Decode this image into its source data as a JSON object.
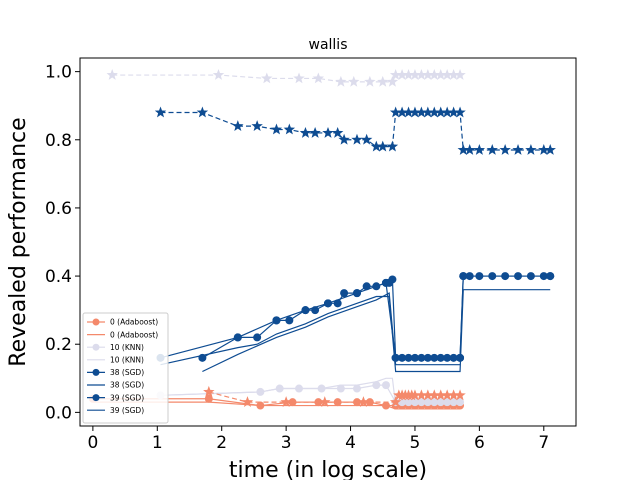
{
  "chart_data": {
    "type": "line",
    "title": "wallis",
    "xlabel": "time (in log scale)",
    "ylabel": "Revealed performance",
    "xlim": [
      -0.2,
      7.5
    ],
    "ylim": [
      -0.04,
      1.04
    ],
    "x_ticks": [
      0,
      1,
      2,
      3,
      4,
      5,
      6,
      7
    ],
    "y_ticks": [
      0.0,
      0.2,
      0.4,
      0.6,
      0.8,
      1.0
    ],
    "x_tick_labels": [
      "0",
      "1",
      "2",
      "3",
      "4",
      "5",
      "6",
      "7"
    ],
    "y_tick_labels": [
      "0.0",
      "0.2",
      "0.4",
      "0.6",
      "0.8",
      "1.0"
    ],
    "grid": false,
    "legend_position": "lower-left",
    "legend": [
      "0 (Adaboost)",
      "0 (Adaboost)",
      "10 (KNN)",
      "10 (KNN)",
      "38 (SGD)",
      "38 (SGD)",
      "39 (SGD)",
      "39 (SGD)"
    ],
    "colors": {
      "adaboost": "#f4896b",
      "knn": "#dcdcec",
      "sgd": "#0e4c92"
    },
    "series": [
      {
        "name": "0 (Adaboost)",
        "role": "test_stars",
        "color": "#f4896b",
        "x": [
          1.8,
          2.4,
          3.0,
          3.6,
          4.2,
          4.7,
          4.75,
          4.8,
          4.85,
          4.9,
          4.95,
          5.0,
          5.1,
          5.2,
          5.3,
          5.4,
          5.5,
          5.6,
          5.7
        ],
        "y": [
          0.06,
          0.03,
          0.03,
          0.03,
          0.03,
          0.03,
          0.05,
          0.05,
          0.05,
          0.05,
          0.05,
          0.05,
          0.05,
          0.05,
          0.05,
          0.05,
          0.05,
          0.05,
          0.05
        ]
      },
      {
        "name": "0 (Adaboost)",
        "role": "markers",
        "color": "#f4896b",
        "x": [
          0.0,
          1.8,
          2.6,
          3.1,
          3.5,
          3.8,
          4.1,
          4.3,
          4.55,
          4.7,
          4.8,
          4.9,
          5.0,
          5.1,
          5.2,
          5.3,
          5.4,
          5.5,
          5.6,
          5.7
        ],
        "y": [
          0.04,
          0.04,
          0.02,
          0.03,
          0.03,
          0.03,
          0.03,
          0.03,
          0.02,
          0.02,
          0.02,
          0.02,
          0.02,
          0.02,
          0.02,
          0.02,
          0.02,
          0.02,
          0.02,
          0.02
        ]
      },
      {
        "name": "0 (Adaboost)",
        "role": "line",
        "color": "#f4896b",
        "x": [
          0.0,
          1.8,
          2.6,
          3.1,
          3.5,
          3.8,
          4.1,
          4.3,
          4.55,
          4.7,
          5.7
        ],
        "y": [
          0.03,
          0.03,
          0.02,
          0.02,
          0.02,
          0.02,
          0.02,
          0.02,
          0.02,
          0.01,
          0.01
        ]
      },
      {
        "name": "10 (KNN)",
        "role": "test_stars",
        "color": "#dcdcec",
        "x": [
          0.3,
          1.95,
          2.7,
          3.2,
          3.5,
          3.85,
          4.05,
          4.3,
          4.5,
          4.65,
          4.7,
          4.8,
          4.9,
          5.0,
          5.1,
          5.2,
          5.3,
          5.4,
          5.5,
          5.6,
          5.7
        ],
        "y": [
          0.99,
          0.99,
          0.98,
          0.98,
          0.98,
          0.97,
          0.97,
          0.97,
          0.97,
          0.97,
          0.99,
          0.99,
          0.99,
          0.99,
          0.99,
          0.99,
          0.99,
          0.99,
          0.99,
          0.99,
          0.99
        ]
      },
      {
        "name": "10 (KNN)",
        "role": "markers",
        "color": "#dcdcec",
        "x": [
          1.05,
          2.6,
          2.9,
          3.2,
          3.55,
          3.85,
          4.1,
          4.4,
          4.55,
          4.7,
          4.8,
          4.9,
          5.0,
          5.1,
          5.2,
          5.3,
          5.4,
          5.5,
          5.6,
          5.7
        ],
        "y": [
          0.05,
          0.06,
          0.07,
          0.07,
          0.07,
          0.07,
          0.07,
          0.08,
          0.08,
          0.03,
          0.03,
          0.03,
          0.03,
          0.03,
          0.03,
          0.03,
          0.03,
          0.03,
          0.03,
          0.03
        ]
      },
      {
        "name": "10 (KNN)",
        "role": "line",
        "color": "#dcdcec",
        "x": [
          1.05,
          2.6,
          2.9,
          3.2,
          3.55,
          3.85,
          4.1,
          4.4,
          4.55,
          4.65,
          4.7,
          5.7
        ],
        "y": [
          0.05,
          0.06,
          0.07,
          0.07,
          0.07,
          0.08,
          0.08,
          0.09,
          0.1,
          0.1,
          0.02,
          0.02
        ]
      },
      {
        "name": "38 (SGD)",
        "role": "test_stars",
        "color": "#0e4c92",
        "x": [
          1.05,
          1.7,
          2.25,
          2.55,
          2.85,
          3.05,
          3.3,
          3.45,
          3.65,
          3.8,
          3.9,
          4.1,
          4.25,
          4.4,
          4.5,
          4.65,
          4.7,
          4.8,
          4.9,
          5.0,
          5.1,
          5.2,
          5.3,
          5.4,
          5.5,
          5.6,
          5.7,
          5.75,
          5.85,
          6.0,
          6.2,
          6.4,
          6.6,
          6.8,
          7.0,
          7.1
        ],
        "y": [
          0.88,
          0.88,
          0.84,
          0.84,
          0.83,
          0.83,
          0.82,
          0.82,
          0.82,
          0.82,
          0.8,
          0.8,
          0.8,
          0.78,
          0.78,
          0.78,
          0.88,
          0.88,
          0.88,
          0.88,
          0.88,
          0.88,
          0.88,
          0.88,
          0.88,
          0.88,
          0.88,
          0.77,
          0.77,
          0.77,
          0.77,
          0.77,
          0.77,
          0.77,
          0.77,
          0.77
        ]
      },
      {
        "name": "38 (SGD)",
        "role": "markers",
        "color": "#0e4c92",
        "x": [
          1.7,
          2.25,
          2.55,
          2.85,
          3.05,
          3.3,
          3.45,
          3.65,
          3.8,
          3.9,
          4.1,
          4.25,
          4.4,
          4.55,
          4.6,
          4.65,
          4.7,
          4.8,
          4.9,
          5.0,
          5.1,
          5.2,
          5.3,
          5.4,
          5.5,
          5.6,
          5.7,
          5.75,
          5.85,
          6.0,
          6.2,
          6.4,
          6.6,
          6.8,
          7.0,
          7.1
        ],
        "y": [
          0.16,
          0.22,
          0.22,
          0.27,
          0.27,
          0.3,
          0.3,
          0.32,
          0.32,
          0.35,
          0.35,
          0.37,
          0.37,
          0.38,
          0.38,
          0.39,
          0.16,
          0.16,
          0.16,
          0.16,
          0.16,
          0.16,
          0.16,
          0.16,
          0.16,
          0.16,
          0.16,
          0.4,
          0.4,
          0.4,
          0.4,
          0.4,
          0.4,
          0.4,
          0.4,
          0.4
        ]
      },
      {
        "name": "38 (SGD)",
        "role": "line",
        "color": "#0e4c92",
        "x": [
          1.05,
          2.25,
          2.55,
          2.85,
          3.3,
          3.65,
          4.1,
          4.4,
          4.6,
          4.7,
          5.7,
          5.75,
          7.1
        ],
        "y": [
          0.14,
          0.19,
          0.2,
          0.23,
          0.26,
          0.29,
          0.32,
          0.34,
          0.34,
          0.12,
          0.12,
          0.36,
          0.36
        ]
      },
      {
        "name": "39 (SGD)",
        "role": "markers",
        "color": "#0e4c92",
        "x": [
          1.05,
          2.25,
          2.85,
          3.3,
          3.65,
          4.1,
          4.55,
          4.7,
          5.7,
          5.75,
          7.1
        ],
        "y": [
          0.16,
          0.22,
          0.27,
          0.3,
          0.32,
          0.35,
          0.38,
          0.16,
          0.16,
          0.4,
          0.4
        ]
      },
      {
        "name": "39 (SGD)",
        "role": "line",
        "color": "#0e4c92",
        "x": [
          1.7,
          2.25,
          2.85,
          3.3,
          3.65,
          4.1,
          4.4,
          4.6,
          4.7,
          5.7
        ],
        "y": [
          0.12,
          0.17,
          0.22,
          0.25,
          0.28,
          0.31,
          0.33,
          0.35,
          0.14,
          0.14
        ]
      }
    ]
  }
}
